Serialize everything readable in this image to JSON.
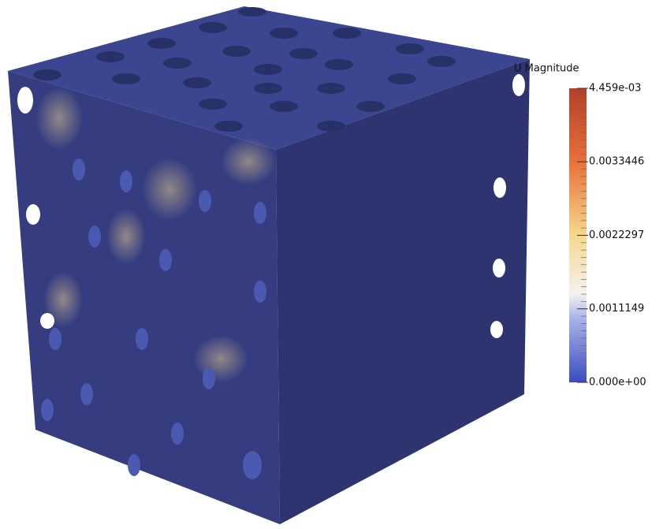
{
  "colorbar": {
    "title": "U Magnitude",
    "range": [
      0,
      0.004459
    ],
    "ticks": [
      {
        "value": 0.004459,
        "label": "4.459e-03"
      },
      {
        "value": 0.0033446,
        "label": "0.0033446"
      },
      {
        "value": 0.0022297,
        "label": "0.0022297"
      },
      {
        "value": 0.0011149,
        "label": "0.0011149"
      },
      {
        "value": 0,
        "label": "0.000e+00"
      }
    ]
  }
}
